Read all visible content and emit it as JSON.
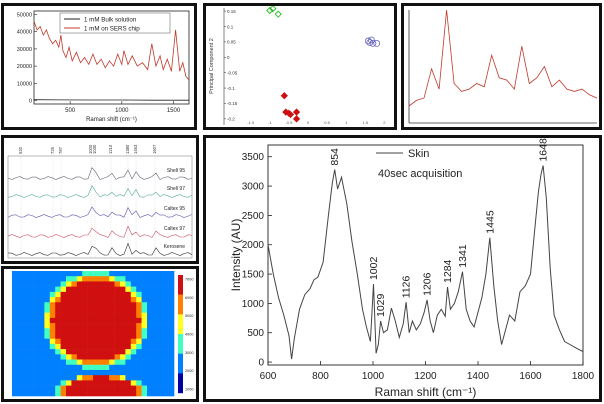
{
  "chart_data": [
    {
      "id": "p1",
      "type": "line",
      "xlabel": "Raman shift (cm⁻¹)",
      "xlim": [
        150,
        1650
      ],
      "ylim": [
        -2000,
        52000
      ],
      "xticks": [
        500,
        1000,
        1500
      ],
      "yticks": [
        0,
        10000,
        20000,
        30000,
        40000,
        50000
      ],
      "series": [
        {
          "name": "1 mM Bulk solution",
          "color": "#222222",
          "x": [
            150,
            400,
            700,
            1000,
            1300,
            1650
          ],
          "y": [
            500,
            400,
            300,
            300,
            200,
            200
          ]
        },
        {
          "name": "1 mM on SERS chip",
          "color": "#c0392b",
          "x": [
            150,
            180,
            210,
            240,
            270,
            300,
            330,
            360,
            390,
            410,
            430,
            460,
            490,
            520,
            560,
            600,
            640,
            680,
            720,
            760,
            800,
            840,
            880,
            920,
            960,
            1000,
            1020,
            1060,
            1100,
            1150,
            1200,
            1250,
            1290,
            1330,
            1370,
            1400,
            1440,
            1480,
            1520,
            1560,
            1590,
            1620,
            1650
          ],
          "y": [
            46000,
            41000,
            43000,
            38000,
            41000,
            36000,
            33000,
            35000,
            31000,
            38000,
            29000,
            25000,
            31000,
            23000,
            28000,
            22000,
            25000,
            21000,
            27000,
            21000,
            24000,
            19000,
            23000,
            20000,
            27000,
            21000,
            29000,
            21000,
            26000,
            20000,
            22000,
            18000,
            33000,
            20000,
            26000,
            18000,
            24000,
            17000,
            41000,
            17000,
            22000,
            14000,
            12000
          ]
        }
      ]
    },
    {
      "id": "p2",
      "type": "scatter",
      "ylabel": "Principal Component 2",
      "xlim": [
        -2.2,
        2.2
      ],
      "ylim": [
        -0.22,
        0.16
      ],
      "xticks": [
        -1.5,
        -1,
        -0.5,
        0,
        0.5,
        1,
        1.5,
        2
      ],
      "yticks": [
        0.15,
        0.1,
        0.05,
        0,
        -0.05,
        -0.1,
        -0.15,
        -0.2
      ],
      "groups": [
        {
          "marker": "diamond-open",
          "color": "#22bb22",
          "points": [
            [
              -1.0,
              0.152
            ],
            [
              -0.92,
              0.158
            ],
            [
              -0.78,
              0.14
            ]
          ]
        },
        {
          "marker": "diamond",
          "color": "#cc1111",
          "points": [
            [
              -0.62,
              -0.125
            ],
            [
              -0.58,
              -0.178
            ],
            [
              -0.5,
              -0.182
            ],
            [
              -0.46,
              -0.186
            ],
            [
              -0.3,
              -0.2
            ],
            [
              -0.3,
              -0.178
            ]
          ]
        },
        {
          "marker": "circle-open",
          "color": "#6666bb",
          "points": [
            [
              1.58,
              0.053
            ],
            [
              1.66,
              0.056
            ],
            [
              1.7,
              0.045
            ],
            [
              1.8,
              0.045
            ],
            [
              1.62,
              0.048
            ]
          ]
        }
      ]
    },
    {
      "id": "p3",
      "type": "line",
      "series": [
        {
          "color": "#c0392b",
          "x": [
            0,
            4,
            8,
            12,
            16,
            20,
            24,
            28,
            32,
            36,
            40,
            44,
            48,
            52,
            56,
            60,
            64,
            68,
            72,
            76,
            80,
            84,
            88,
            92,
            96,
            100
          ],
          "y": [
            15,
            20,
            22,
            48,
            30,
            100,
            35,
            28,
            30,
            35,
            32,
            60,
            40,
            38,
            30,
            68,
            35,
            40,
            50,
            32,
            38,
            30,
            28,
            30,
            25,
            22
          ]
        }
      ]
    },
    {
      "id": "p4",
      "type": "line",
      "peak_labels": [
        "520",
        "725",
        "787",
        "1000",
        "1030",
        "1210",
        "1380",
        "1463",
        "1607"
      ],
      "series": [
        {
          "name": "Shell 95",
          "color": "#666677"
        },
        {
          "name": "Shell 97",
          "color": "#55aa99"
        },
        {
          "name": "Caltex 95",
          "color": "#6655aa"
        },
        {
          "name": "Caltex 97",
          "color": "#cc5566"
        },
        {
          "name": "Kerosene",
          "color": "#333333"
        }
      ]
    },
    {
      "id": "p5",
      "type": "heatmap",
      "colorbar_ticks": [
        "7000",
        "6000",
        "5000",
        "4000",
        "3000",
        "2000",
        "1000"
      ]
    },
    {
      "id": "p6",
      "type": "line",
      "legend": "Skin",
      "annotation": "40sec acquisition",
      "xlabel": "Raman shift (cm⁻¹)",
      "ylabel": "Intensity (AU)",
      "xlim": [
        600,
        1800
      ],
      "ylim": [
        -50,
        3700
      ],
      "xticks": [
        600,
        800,
        1000,
        1200,
        1400,
        1600,
        1800
      ],
      "yticks": [
        0,
        500,
        1000,
        1500,
        2000,
        2500,
        3000,
        3500
      ],
      "peak_labels": [
        {
          "label": "854",
          "x": 854,
          "y": 3280
        },
        {
          "label": "1002",
          "x": 1002,
          "y": 1330
        },
        {
          "label": "1029",
          "x": 1029,
          "y": 700
        },
        {
          "label": "1126",
          "x": 1126,
          "y": 1020
        },
        {
          "label": "1206",
          "x": 1206,
          "y": 1060
        },
        {
          "label": "1284",
          "x": 1284,
          "y": 1280
        },
        {
          "label": "1341",
          "x": 1341,
          "y": 1540
        },
        {
          "label": "1445",
          "x": 1445,
          "y": 2120
        },
        {
          "label": "1648",
          "x": 1648,
          "y": 3350
        }
      ],
      "series": [
        {
          "name": "Skin",
          "color": "#444444",
          "x": [
            600,
            620,
            640,
            660,
            680,
            690,
            700,
            720,
            740,
            760,
            775,
            790,
            810,
            830,
            845,
            854,
            865,
            880,
            900,
            920,
            940,
            960,
            975,
            990,
            1002,
            1012,
            1020,
            1029,
            1040,
            1055,
            1070,
            1085,
            1100,
            1115,
            1126,
            1138,
            1150,
            1165,
            1180,
            1195,
            1206,
            1218,
            1230,
            1245,
            1260,
            1275,
            1284,
            1295,
            1310,
            1325,
            1341,
            1355,
            1370,
            1385,
            1400,
            1415,
            1430,
            1445,
            1460,
            1475,
            1490,
            1505,
            1520,
            1540,
            1560,
            1580,
            1600,
            1615,
            1630,
            1640,
            1648,
            1660,
            1675,
            1690,
            1710,
            1730,
            1750,
            1770,
            1790,
            1800
          ],
          "y": [
            2000,
            1500,
            1100,
            800,
            450,
            50,
            400,
            900,
            1150,
            1250,
            1400,
            1450,
            1700,
            2500,
            3050,
            3280,
            2950,
            3150,
            2700,
            2050,
            1500,
            900,
            600,
            350,
            1330,
            150,
            300,
            700,
            500,
            550,
            920,
            700,
            420,
            650,
            1020,
            500,
            700,
            550,
            650,
            850,
            1060,
            700,
            500,
            800,
            900,
            780,
            1280,
            900,
            1000,
            1200,
            1540,
            900,
            700,
            600,
            850,
            1100,
            1500,
            2120,
            1300,
            700,
            300,
            550,
            800,
            700,
            1200,
            1300,
            1500,
            2200,
            2900,
            3200,
            3350,
            2800,
            1600,
            800,
            550,
            350,
            300,
            250,
            200,
            180
          ]
        }
      ]
    }
  ]
}
